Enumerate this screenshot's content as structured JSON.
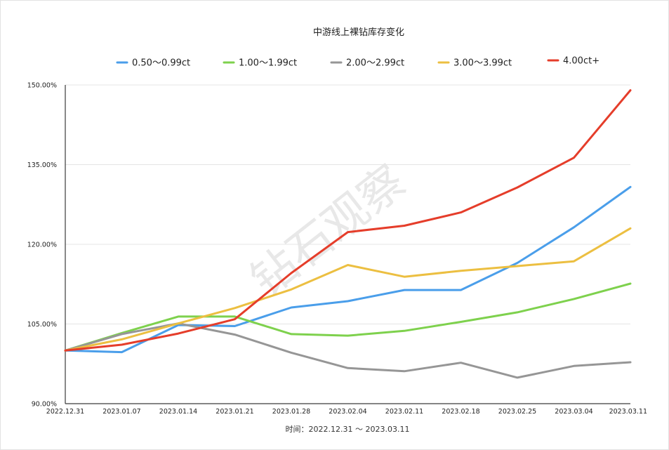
{
  "chart_data": {
    "type": "line",
    "title": "中游线上裸钻库存变化",
    "xlabel": "时间：2022.12.31 ～ 2023.03.11",
    "ylabel": "",
    "watermark": "钻石观察",
    "grid": true,
    "legend_position": "top",
    "ylim": [
      90,
      150
    ],
    "y_ticks": [
      90,
      105,
      120,
      135,
      150
    ],
    "y_tick_labels": [
      "90.00%",
      "105.00%",
      "120.00%",
      "135.00%",
      "150.00%"
    ],
    "categories": [
      "2022.12.31",
      "2023.01.07",
      "2023.01.14",
      "2023.01.21",
      "2023.01.28",
      "2023.02.04",
      "2023.02.11",
      "2023.02.18",
      "2023.02.25",
      "2023.03.04",
      "2023.03.11"
    ],
    "series": [
      {
        "name": "0.50～0.99ct",
        "color": "#4a9eea",
        "values": [
          100.0,
          99.7,
          104.8,
          104.6,
          108.1,
          109.3,
          111.4,
          111.4,
          116.5,
          123.2,
          130.8
        ]
      },
      {
        "name": "1.00～1.99ct",
        "color": "#7ed14d",
        "values": [
          100.0,
          103.3,
          106.4,
          106.4,
          103.1,
          102.8,
          103.7,
          105.4,
          107.2,
          109.7,
          112.6
        ]
      },
      {
        "name": "2.00～2.99ct",
        "color": "#969696",
        "values": [
          100.0,
          103.1,
          105.1,
          103.0,
          99.6,
          96.7,
          96.1,
          97.7,
          94.9,
          97.1,
          97.8
        ]
      },
      {
        "name": "3.00～3.99ct",
        "color": "#ecbf41",
        "values": [
          100.0,
          102.1,
          105.1,
          108.0,
          111.5,
          116.1,
          113.9,
          115.0,
          115.9,
          116.8,
          123.0
        ]
      },
      {
        "name": "4.00ct+",
        "color": "#e53d2a",
        "values": [
          100.0,
          101.1,
          103.2,
          105.9,
          114.6,
          122.3,
          123.5,
          126.0,
          130.7,
          136.3,
          149.0
        ]
      }
    ]
  }
}
